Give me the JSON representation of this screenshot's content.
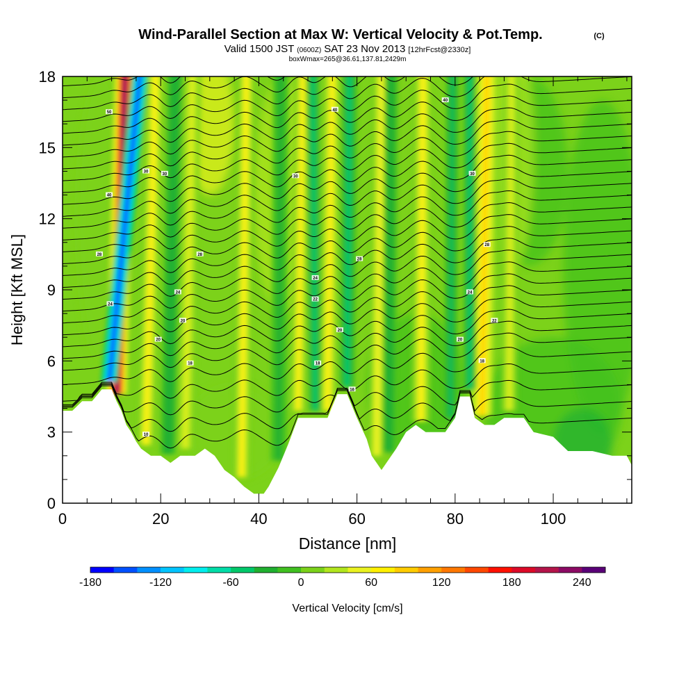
{
  "chart_data": {
    "type": "heatmap",
    "title": {
      "main": "Wind-Parallel Section at Max W: Vertical Velocity & Pot.Temp.",
      "copyright": "(C)",
      "line2_a": "Valid 1500 JST",
      "line2_b": "(0600Z)",
      "line2_c": "SAT 23 Nov 2013",
      "line2_d": "[12hrFcst@2330z]",
      "line3": "boxWmax=265@36.61,137.81,2429m"
    },
    "xlabel": "Distance [nm]",
    "ylabel": "Height [Kft MSL]",
    "xlim": [
      0,
      116
    ],
    "ylim": [
      0,
      18
    ],
    "x_ticks": [
      0,
      20,
      40,
      60,
      80,
      100
    ],
    "y_ticks": [
      0,
      3,
      6,
      9,
      12,
      15,
      18
    ],
    "colorbar": {
      "label": "Vertical Velocity [cm/s]",
      "range": [
        -180,
        270
      ],
      "step": 20,
      "tick_values": [
        -180,
        -120,
        -60,
        0,
        60,
        120,
        180,
        240
      ],
      "colors": [
        "#0000ff",
        "#0050ff",
        "#0090ff",
        "#00c4ff",
        "#00eeee",
        "#00dda8",
        "#00c86a",
        "#20b030",
        "#40c020",
        "#7cd21a",
        "#b2e61e",
        "#eaf220",
        "#fff000",
        "#ffcc00",
        "#ffa000",
        "#ff7800",
        "#ff4800",
        "#ff1000",
        "#dc0a28",
        "#b4144a",
        "#8c0a64",
        "#5a0078"
      ]
    },
    "terrain_profile": [
      [
        0,
        3.9
      ],
      [
        2,
        3.9
      ],
      [
        4,
        4.3
      ],
      [
        6,
        4.3
      ],
      [
        8,
        4.8
      ],
      [
        10,
        4.8
      ],
      [
        11,
        4.3
      ],
      [
        12,
        3.9
      ],
      [
        13,
        3.3
      ],
      [
        14,
        3.0
      ],
      [
        15,
        2.6
      ],
      [
        16,
        2.3
      ],
      [
        18,
        2.0
      ],
      [
        20,
        2.0
      ],
      [
        22,
        1.7
      ],
      [
        24,
        2.0
      ],
      [
        27,
        2.0
      ],
      [
        29,
        2.3
      ],
      [
        31,
        2.0
      ],
      [
        33,
        1.4
      ],
      [
        35,
        1.1
      ],
      [
        37,
        0.7
      ],
      [
        39,
        0.4
      ],
      [
        41,
        0.4
      ],
      [
        42,
        0.7
      ],
      [
        44,
        1.5
      ],
      [
        46,
        2.5
      ],
      [
        48,
        3.6
      ],
      [
        52,
        3.6
      ],
      [
        54,
        3.6
      ],
      [
        56,
        4.6
      ],
      [
        58,
        4.6
      ],
      [
        60,
        3.6
      ],
      [
        62,
        2.7
      ],
      [
        63,
        2.0
      ],
      [
        64,
        1.7
      ],
      [
        65,
        1.4
      ],
      [
        66,
        1.7
      ],
      [
        68,
        2.3
      ],
      [
        70,
        3.0
      ],
      [
        72,
        3.3
      ],
      [
        74,
        3.0
      ],
      [
        76,
        3.0
      ],
      [
        78,
        3.0
      ],
      [
        80,
        3.6
      ],
      [
        81,
        4.5
      ],
      [
        83,
        4.5
      ],
      [
        84,
        3.6
      ],
      [
        86,
        3.3
      ],
      [
        88,
        3.3
      ],
      [
        90,
        3.6
      ],
      [
        92,
        3.6
      ],
      [
        94,
        3.6
      ],
      [
        96,
        3.0
      ],
      [
        98,
        2.9
      ],
      [
        100,
        2.8
      ],
      [
        103,
        2.2
      ],
      [
        108,
        2.2
      ],
      [
        112,
        2.0
      ],
      [
        115,
        2.0
      ],
      [
        116,
        1.6
      ]
    ],
    "updraft_bands": [
      {
        "x_top": 12.8,
        "x_bottom": 11.0,
        "width": 1.6,
        "value": 230
      },
      {
        "x_top": 19.0,
        "x_bottom": 17.0,
        "width": 1.5,
        "value": 60
      },
      {
        "x_top": 26.5,
        "x_bottom": 25.0,
        "width": 1.4,
        "value": 45
      },
      {
        "x_top": 37.5,
        "x_bottom": 36.5,
        "width": 1.4,
        "value": 60
      },
      {
        "x_top": 49.0,
        "x_bottom": 48.0,
        "width": 1.3,
        "value": 60
      },
      {
        "x_top": 55.0,
        "x_bottom": 54.0,
        "width": 1.5,
        "value": 65
      },
      {
        "x_top": 65.0,
        "x_bottom": 64.0,
        "width": 1.3,
        "value": 55
      },
      {
        "x_top": 73.5,
        "x_bottom": 73.0,
        "width": 1.5,
        "value": 70
      },
      {
        "x_top": 86.5,
        "x_bottom": 85.5,
        "width": 1.6,
        "value": 80
      },
      {
        "x_top": 91.5,
        "x_bottom": 91.0,
        "width": 1.2,
        "value": 45
      }
    ],
    "downdraft_bands": [
      {
        "x_top": 16.0,
        "x_bottom": 9.5,
        "width": 1.3,
        "value": -175
      },
      {
        "x_top": 23.0,
        "x_bottom": 21.5,
        "width": 1.2,
        "value": -40
      },
      {
        "x_top": 44.5,
        "x_bottom": 44.0,
        "width": 1.2,
        "value": -35
      },
      {
        "x_top": 51.0,
        "x_bottom": 51.5,
        "width": 1.0,
        "value": -60
      },
      {
        "x_top": 58.5,
        "x_bottom": 58.0,
        "width": 1.2,
        "value": -60
      },
      {
        "x_top": 67.0,
        "x_bottom": 66.5,
        "width": 1.0,
        "value": -40
      },
      {
        "x_top": 79.5,
        "x_bottom": 79.0,
        "width": 1.0,
        "value": -45
      },
      {
        "x_top": 83.0,
        "x_bottom": 83.0,
        "width": 1.0,
        "value": -55
      }
    ],
    "theta_contours": {
      "levels_kelvin_offset": [
        10,
        11,
        12,
        13,
        14,
        15,
        16,
        17,
        18,
        19,
        20,
        21,
        22,
        23,
        24,
        25,
        26,
        27,
        28,
        29,
        30,
        31,
        32,
        33,
        34,
        35,
        36,
        37,
        38,
        39,
        40
      ],
      "base_height_kft": [
        2.2,
        2.9,
        3.6,
        4.3,
        5.0,
        5.6,
        6.1,
        6.6,
        7.1,
        7.6,
        8.1,
        8.6,
        9.1,
        9.6,
        10.1,
        10.6,
        11.1,
        11.6,
        12.1,
        12.6,
        13.1,
        13.6,
        14.1,
        14.6,
        15.1,
        15.6,
        16.1,
        16.6,
        17.1,
        17.6,
        18.1
      ]
    },
    "contour_labels": [
      {
        "text": "50",
        "x": 9.5,
        "y": 16.5
      },
      {
        "text": "40",
        "x": 9.5,
        "y": 13.0
      },
      {
        "text": "28",
        "x": 7.5,
        "y": 10.5
      },
      {
        "text": "24",
        "x": 9.7,
        "y": 8.4
      },
      {
        "text": "30",
        "x": 17.0,
        "y": 14.0
      },
      {
        "text": "30",
        "x": 20.8,
        "y": 13.9
      },
      {
        "text": "28",
        "x": 28.0,
        "y": 10.5
      },
      {
        "text": "24",
        "x": 23.5,
        "y": 8.9
      },
      {
        "text": "20",
        "x": 24.5,
        "y": 7.7
      },
      {
        "text": "20",
        "x": 19.5,
        "y": 6.9
      },
      {
        "text": "18",
        "x": 26.0,
        "y": 5.9
      },
      {
        "text": "10",
        "x": 17.0,
        "y": 2.9
      },
      {
        "text": "30",
        "x": 47.5,
        "y": 13.8
      },
      {
        "text": "40",
        "x": 55.5,
        "y": 16.6
      },
      {
        "text": "28",
        "x": 60.5,
        "y": 10.3
      },
      {
        "text": "24",
        "x": 51.5,
        "y": 9.5
      },
      {
        "text": "22",
        "x": 51.5,
        "y": 8.6
      },
      {
        "text": "20",
        "x": 56.5,
        "y": 7.3
      },
      {
        "text": "18",
        "x": 52.0,
        "y": 5.9
      },
      {
        "text": "16",
        "x": 59.0,
        "y": 4.8
      },
      {
        "text": "40",
        "x": 78.0,
        "y": 17.0
      },
      {
        "text": "30",
        "x": 83.5,
        "y": 13.9
      },
      {
        "text": "28",
        "x": 86.5,
        "y": 10.9
      },
      {
        "text": "24",
        "x": 83.0,
        "y": 8.9
      },
      {
        "text": "22",
        "x": 88.0,
        "y": 7.7
      },
      {
        "text": "20",
        "x": 81.0,
        "y": 6.9
      },
      {
        "text": "18",
        "x": 85.5,
        "y": 6.0
      }
    ]
  }
}
